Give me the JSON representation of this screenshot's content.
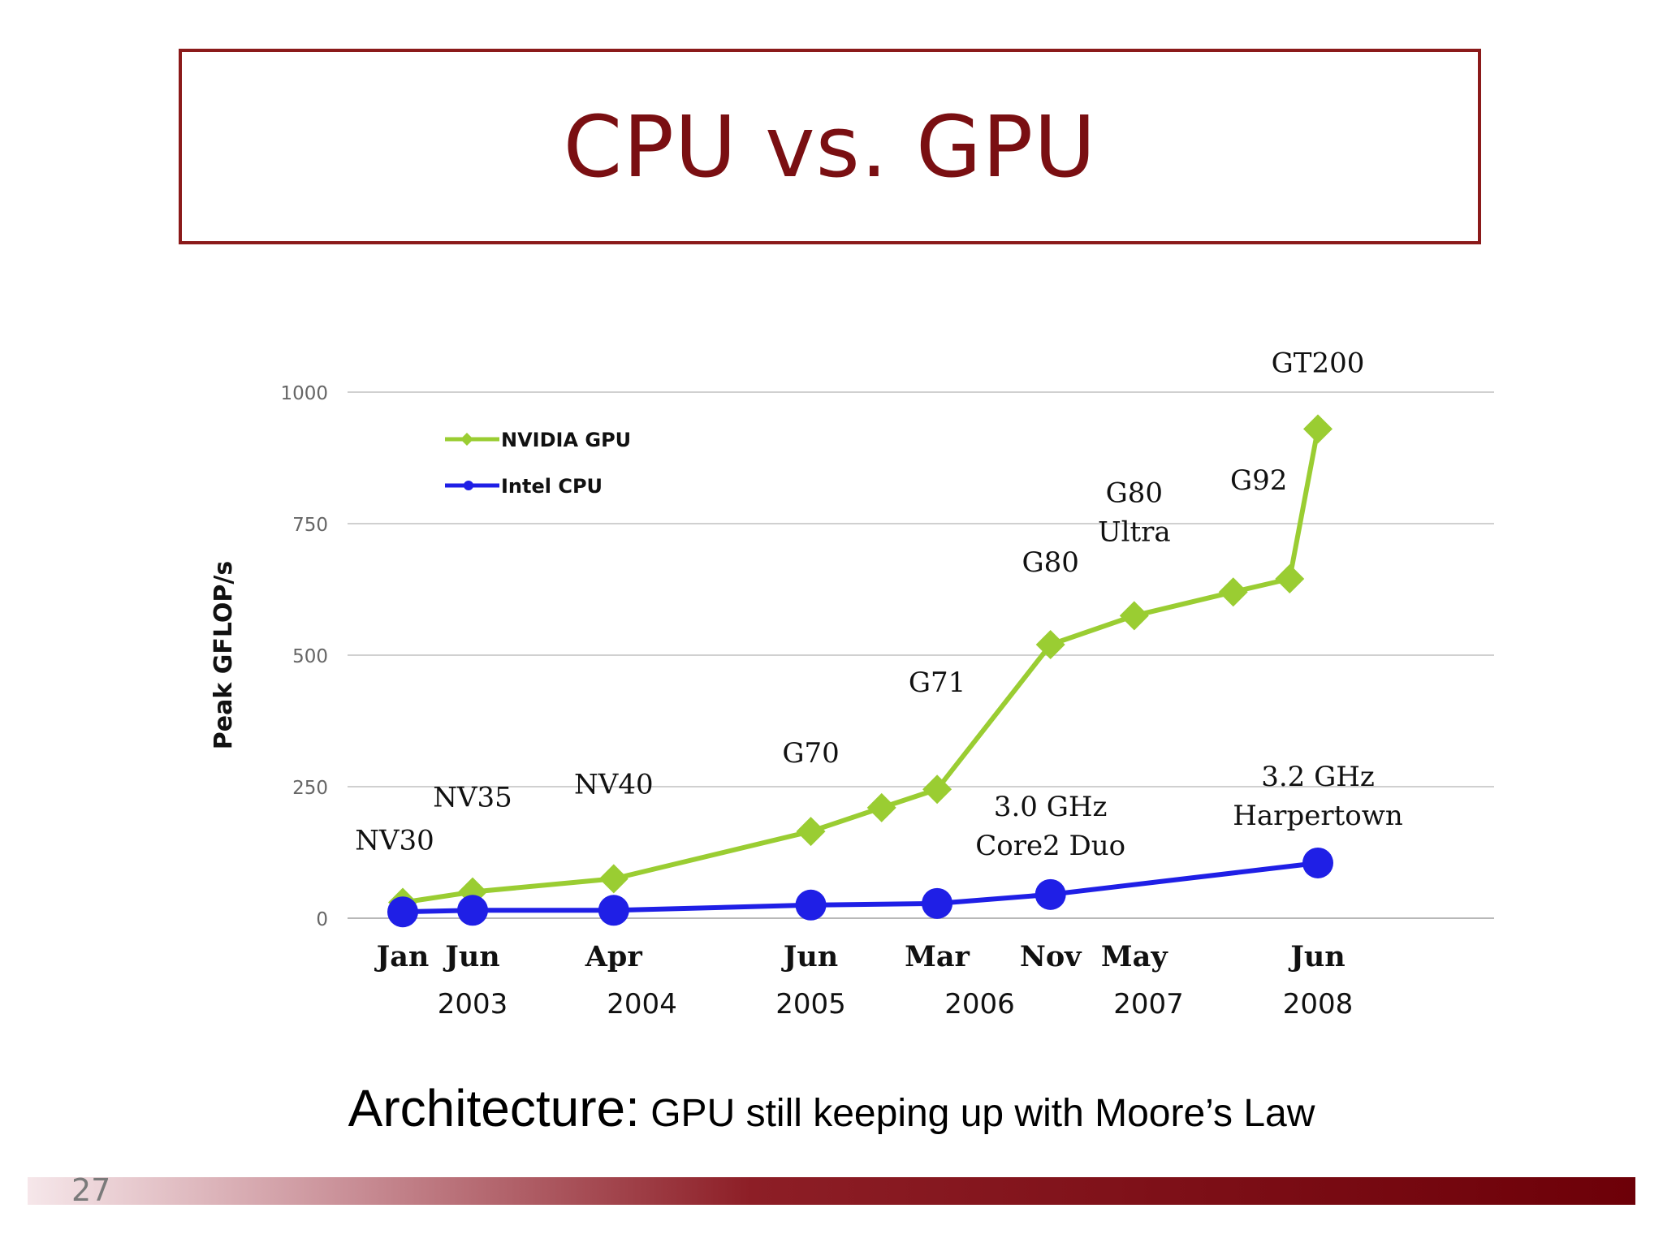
{
  "slide": {
    "title": "CPU vs. GPU",
    "caption_lead": "Architecture:",
    "caption_rest": " GPU still keeping up with Moore’s Law",
    "page_number": "27"
  },
  "colors": {
    "title": "#7a0f12",
    "gpu_series": "#9acd32",
    "cpu_series": "#1f1fe6",
    "footer_bar": "#6d0008"
  },
  "chart_data": {
    "type": "line",
    "ylabel": "Peak GFLOP/s",
    "xlabel": "",
    "ylim": [
      0,
      1000
    ],
    "yticks": [
      0,
      250,
      500,
      750,
      1000
    ],
    "grid": true,
    "legend_position": "top-left",
    "x_month_labels": [
      "Jan",
      "Jun",
      "Apr",
      "Jun",
      "Mar",
      "Nov",
      "May",
      "Jun"
    ],
    "x_month_values": [
      "2003-01",
      "2003-06",
      "2004-04",
      "2005-06",
      "2006-03",
      "2006-11",
      "2007-05",
      "2008-06"
    ],
    "x_year_labels": [
      "2003",
      "2004",
      "2005",
      "2006",
      "2007",
      "2008"
    ],
    "x_year_values": [
      "2003-06",
      "2004-06",
      "2005-06",
      "2006-06",
      "2007-06",
      "2008-06"
    ],
    "series": [
      {
        "name": "NVIDIA GPU",
        "marker": "diamond",
        "points": [
          {
            "x": "2003-01",
            "y": 30,
            "label": "NV30"
          },
          {
            "x": "2003-06",
            "y": 50,
            "label": "NV35"
          },
          {
            "x": "2004-04",
            "y": 75,
            "label": "NV40"
          },
          {
            "x": "2005-06",
            "y": 165,
            "label": "G70"
          },
          {
            "x": "2005-11",
            "y": 210,
            "label": ""
          },
          {
            "x": "2006-03",
            "y": 245,
            "label": "G71"
          },
          {
            "x": "2006-11",
            "y": 520,
            "label": "G80"
          },
          {
            "x": "2007-05",
            "y": 575,
            "label": "G80 Ultra"
          },
          {
            "x": "2007-12",
            "y": 620,
            "label": ""
          },
          {
            "x": "2008-04",
            "y": 645,
            "label": "G92"
          },
          {
            "x": "2008-06",
            "y": 930,
            "label": "GT200"
          }
        ]
      },
      {
        "name": "Intel CPU",
        "marker": "circle",
        "points": [
          {
            "x": "2003-01",
            "y": 12,
            "label": ""
          },
          {
            "x": "2003-06",
            "y": 15,
            "label": ""
          },
          {
            "x": "2004-04",
            "y": 15,
            "label": ""
          },
          {
            "x": "2005-06",
            "y": 25,
            "label": ""
          },
          {
            "x": "2006-03",
            "y": 28,
            "label": ""
          },
          {
            "x": "2006-11",
            "y": 45,
            "label": "3.0 GHz Core2 Duo"
          },
          {
            "x": "2008-06",
            "y": 105,
            "label": "3.2 GHz Harpertown"
          }
        ]
      }
    ]
  }
}
